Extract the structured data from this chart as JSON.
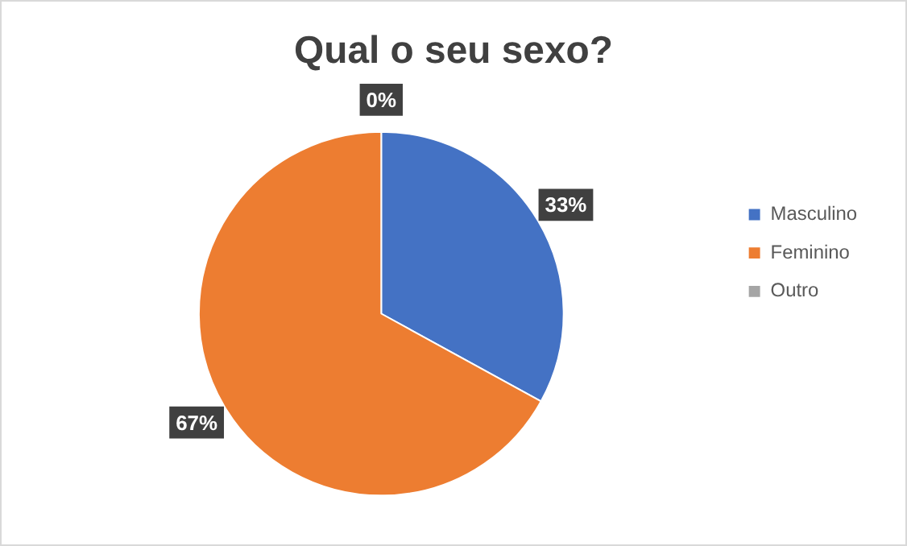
{
  "chart_data": {
    "type": "pie",
    "title": "Qual o seu sexo?",
    "categories": [
      "Masculino",
      "Feminino",
      "Outro"
    ],
    "values": [
      33,
      67,
      0
    ],
    "colors": [
      "#4472c4",
      "#ed7d31",
      "#a5a5a5"
    ],
    "value_labels": [
      "33%",
      "67%",
      "0%"
    ],
    "legend": "right"
  }
}
